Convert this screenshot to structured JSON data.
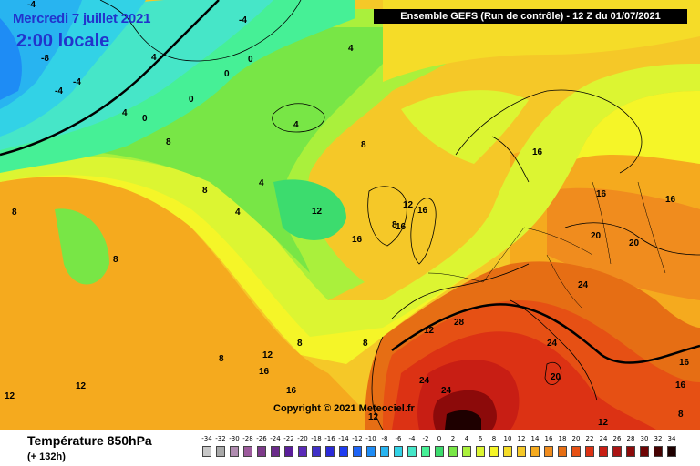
{
  "header": {
    "date_label": "Mercredi 7 juillet 2021",
    "time_label": "2:00 locale",
    "model_label": "Ensemble GEFS  (Run de contrôle)  - 12 Z du 01/07/2021"
  },
  "map": {
    "copyright": "Copyright © 2021 Meteociel.fr",
    "isotherm_labels": [
      "-4",
      "-4",
      "-8",
      "-4",
      "-4",
      "4",
      "0",
      "0",
      "4",
      "0",
      "4",
      "0",
      "8",
      "4",
      "8",
      "8",
      "8",
      "12",
      "16",
      "12",
      "16",
      "4",
      "4",
      "8",
      "8",
      "8",
      "8",
      "12",
      "16",
      "16",
      "12",
      "12",
      "16",
      "16",
      "16",
      "20",
      "20",
      "24",
      "28",
      "24",
      "20",
      "24",
      "24",
      "16",
      "16",
      "12",
      "12",
      "12",
      "8",
      "8",
      "16"
    ]
  },
  "footer": {
    "parameter_title": "Température 850hPa",
    "forecast_hour": "(+ 132h)"
  },
  "legend": {
    "labels": [
      "-34",
      "-32",
      "-30",
      "-28",
      "-26",
      "-24",
      "-22",
      "-20",
      "-18",
      "-16",
      "-14",
      "-12",
      "-10",
      "-8",
      "-6",
      "-4",
      "-2",
      "0",
      "2",
      "4",
      "6",
      "8",
      "10",
      "12",
      "14",
      "16",
      "18",
      "20",
      "22",
      "24",
      "26",
      "28",
      "30",
      "32",
      "34"
    ],
    "colors": [
      "#c8c8c8",
      "#a8a8a8",
      "#b08cb0",
      "#9c5a9c",
      "#7d3a8a",
      "#6a2a8a",
      "#5a1e9a",
      "#5a2ab8",
      "#4030c8",
      "#2a2ad8",
      "#1e3cf0",
      "#1e64f5",
      "#1e8cf5",
      "#28b4f0",
      "#32d2e6",
      "#46e6c8",
      "#46f096",
      "#3cdc6e",
      "#78e646",
      "#aaf03c",
      "#dcf532",
      "#f5f528",
      "#f5dc28",
      "#f5c828",
      "#f5aa1e",
      "#f08c1e",
      "#e66e14",
      "#e65014",
      "#dc3214",
      "#c81e14",
      "#aa1414",
      "#8c0a0a",
      "#6e0505",
      "#460303",
      "#1e0000"
    ],
    "accent_zero_isotherm": "#000000"
  }
}
